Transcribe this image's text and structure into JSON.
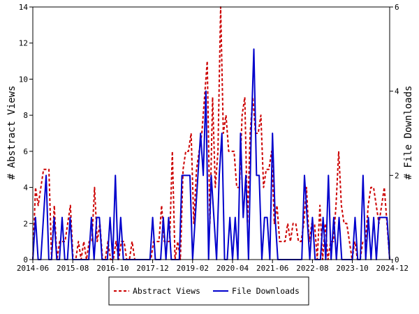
{
  "chart_data": {
    "type": "line",
    "title": "",
    "xlabel": "",
    "ylabel": "# Abstract Views",
    "y2label": "# File Downloads",
    "x_tick_labels": [
      "2014-06",
      "2015-08",
      "2016-10",
      "2017-12",
      "2019-02",
      "2020-04",
      "2021-06",
      "2022-08",
      "2023-10",
      "2024-12"
    ],
    "y_ticks": [
      0,
      2,
      4,
      6,
      8,
      10,
      12,
      14
    ],
    "y2_ticks": [
      0,
      2,
      4,
      6
    ],
    "ylim": [
      0,
      14
    ],
    "y2lim": [
      0,
      6
    ],
    "grid": false,
    "legend_position": "bottom-center",
    "series": [
      {
        "name": "Abstract Views",
        "axis": "left",
        "color": "#cc0000",
        "style": "dashed",
        "values": [
          0,
          4,
          3,
          4,
          5,
          5,
          5,
          0,
          3,
          0,
          1,
          1,
          1,
          2,
          3,
          0,
          0,
          1,
          0,
          1,
          0,
          1,
          1,
          4,
          1,
          2,
          0,
          0,
          1,
          0,
          0,
          1,
          0,
          1,
          1,
          0,
          0,
          1,
          0,
          0,
          0,
          0,
          0,
          0,
          0,
          1,
          1,
          1,
          3,
          1,
          1,
          1,
          6,
          0,
          1,
          0,
          5,
          6,
          6,
          7,
          2,
          5,
          6,
          7,
          9,
          11,
          2,
          9,
          4,
          6,
          14,
          7,
          8,
          6,
          6,
          6,
          4,
          4,
          8,
          9,
          2,
          7,
          9,
          7,
          7,
          8,
          4,
          5,
          5,
          6,
          2,
          3,
          1,
          1,
          1,
          2,
          1,
          2,
          2,
          1,
          1,
          2,
          4,
          1,
          2,
          2,
          0,
          3,
          0,
          2,
          0,
          1,
          1,
          3,
          6,
          3,
          2,
          2,
          1,
          0,
          1,
          0,
          0,
          1,
          1,
          3,
          4,
          4,
          3,
          2,
          3,
          4,
          2,
          0
        ]
      },
      {
        "name": "File Downloads",
        "axis": "right",
        "color": "#0000cc",
        "style": "solid",
        "values": [
          0,
          1,
          0,
          0,
          1,
          2,
          0,
          0,
          1,
          0,
          0,
          1,
          0,
          0,
          1,
          0,
          0,
          0,
          0,
          0,
          0,
          0,
          1,
          0,
          1,
          1,
          0,
          0,
          0,
          1,
          0,
          2,
          0,
          1,
          0,
          0,
          0,
          0,
          0,
          0,
          0,
          0,
          0,
          0,
          0,
          1,
          0,
          0,
          0,
          1,
          0,
          1,
          0,
          0,
          0,
          0,
          2,
          2,
          2,
          2,
          0,
          1,
          2,
          3,
          2,
          4,
          0,
          2,
          1,
          0,
          2,
          3,
          0,
          0,
          1,
          0,
          1,
          0,
          3,
          1,
          2,
          0,
          3,
          5,
          2,
          2,
          0,
          1,
          1,
          0,
          3,
          1,
          0,
          0,
          0,
          0,
          0,
          0,
          0,
          0,
          0,
          0,
          2,
          1,
          0,
          1,
          0,
          0,
          0,
          1,
          0,
          2,
          0,
          1,
          0,
          1,
          0,
          0,
          0,
          0,
          0,
          1,
          0,
          0,
          2,
          0,
          1,
          0,
          1,
          0,
          1,
          1,
          1,
          1,
          0
        ]
      }
    ]
  }
}
